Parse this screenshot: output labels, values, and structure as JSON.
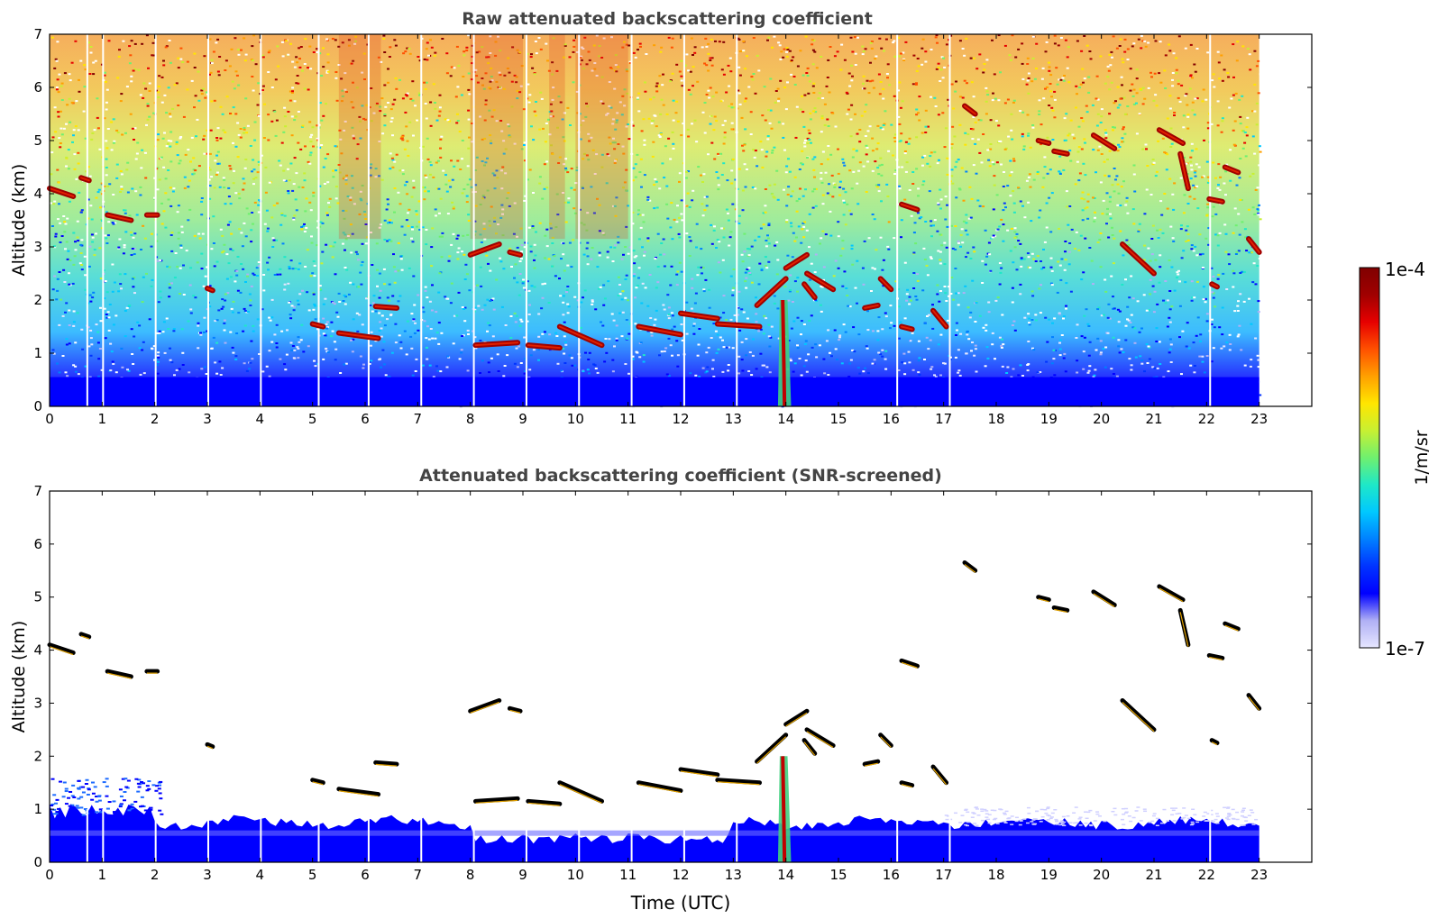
{
  "chart_data": [
    {
      "type": "heatmap",
      "title": "Raw attenuated backscattering coefficient",
      "ylabel": "Altitude (km)",
      "xlabel": "",
      "xlim": [
        0,
        24
      ],
      "ylim": [
        0,
        7
      ],
      "xticks": [
        "0",
        "1",
        "2",
        "3",
        "4",
        "5",
        "6",
        "7",
        "8",
        "9",
        "10",
        "11",
        "12",
        "13",
        "14",
        "15",
        "16",
        "17",
        "18",
        "19",
        "20",
        "21",
        "22",
        "23"
      ],
      "yticks": [
        "0",
        "1",
        "2",
        "3",
        "4",
        "5",
        "6",
        "7"
      ],
      "data_extent_hours": [
        0,
        23
      ],
      "gap_hours": [
        0.7,
        1.0,
        2.0,
        3.0,
        4.0,
        5.1,
        6.05,
        7.05,
        8.05,
        9.05,
        10.05,
        11.05,
        12.05,
        13.05,
        16.1,
        17.1,
        22.05
      ],
      "cloud_segments": [
        {
          "x": [
            0.0,
            0.45
          ],
          "y": [
            4.1,
            3.95
          ]
        },
        {
          "x": [
            0.6,
            0.75
          ],
          "y": [
            4.3,
            4.25
          ]
        },
        {
          "x": [
            1.1,
            1.55
          ],
          "y": [
            3.6,
            3.5
          ]
        },
        {
          "x": [
            1.85,
            2.05
          ],
          "y": [
            3.6,
            3.6
          ]
        },
        {
          "x": [
            3.0,
            3.1
          ],
          "y": [
            2.22,
            2.18
          ]
        },
        {
          "x": [
            5.0,
            5.2
          ],
          "y": [
            1.55,
            1.5
          ]
        },
        {
          "x": [
            5.5,
            6.25
          ],
          "y": [
            1.38,
            1.28
          ]
        },
        {
          "x": [
            6.2,
            6.6
          ],
          "y": [
            1.88,
            1.85
          ]
        },
        {
          "x": [
            8.0,
            8.55
          ],
          "y": [
            2.85,
            3.05
          ]
        },
        {
          "x": [
            8.75,
            8.95
          ],
          "y": [
            2.9,
            2.85
          ]
        },
        {
          "x": [
            8.1,
            8.9
          ],
          "y": [
            1.15,
            1.2
          ]
        },
        {
          "x": [
            9.1,
            9.7
          ],
          "y": [
            1.15,
            1.1
          ]
        },
        {
          "x": [
            9.7,
            10.5
          ],
          "y": [
            1.5,
            1.15
          ]
        },
        {
          "x": [
            11.2,
            12.0
          ],
          "y": [
            1.5,
            1.35
          ]
        },
        {
          "x": [
            12.0,
            12.7
          ],
          "y": [
            1.75,
            1.65
          ]
        },
        {
          "x": [
            12.7,
            13.5
          ],
          "y": [
            1.55,
            1.5
          ]
        },
        {
          "x": [
            13.45,
            14.0
          ],
          "y": [
            1.9,
            2.4
          ]
        },
        {
          "x": [
            14.0,
            14.4
          ],
          "y": [
            2.6,
            2.85
          ]
        },
        {
          "x": [
            14.4,
            14.9
          ],
          "y": [
            2.5,
            2.2
          ]
        },
        {
          "x": [
            14.35,
            14.55
          ],
          "y": [
            2.3,
            2.05
          ]
        },
        {
          "x": [
            15.5,
            15.75
          ],
          "y": [
            1.85,
            1.9
          ]
        },
        {
          "x": [
            15.8,
            16.0
          ],
          "y": [
            2.4,
            2.2
          ]
        },
        {
          "x": [
            16.2,
            16.5
          ],
          "y": [
            3.8,
            3.7
          ]
        },
        {
          "x": [
            16.2,
            16.4
          ],
          "y": [
            1.5,
            1.45
          ]
        },
        {
          "x": [
            16.8,
            17.05
          ],
          "y": [
            1.8,
            1.5
          ]
        },
        {
          "x": [
            17.4,
            17.6
          ],
          "y": [
            5.65,
            5.5
          ]
        },
        {
          "x": [
            18.8,
            19.0
          ],
          "y": [
            5.0,
            4.95
          ]
        },
        {
          "x": [
            19.1,
            19.35
          ],
          "y": [
            4.8,
            4.75
          ]
        },
        {
          "x": [
            19.85,
            20.25
          ],
          "y": [
            5.1,
            4.85
          ]
        },
        {
          "x": [
            20.4,
            21.0
          ],
          "y": [
            3.05,
            2.5
          ]
        },
        {
          "x": [
            21.1,
            21.55
          ],
          "y": [
            5.2,
            4.95
          ]
        },
        {
          "x": [
            21.5,
            21.65
          ],
          "y": [
            4.75,
            4.1
          ]
        },
        {
          "x": [
            22.05,
            22.3
          ],
          "y": [
            3.9,
            3.85
          ]
        },
        {
          "x": [
            22.1,
            22.2
          ],
          "y": [
            2.3,
            2.25
          ]
        },
        {
          "x": [
            22.35,
            22.6
          ],
          "y": [
            4.5,
            4.4
          ]
        },
        {
          "x": [
            22.8,
            23.0
          ],
          "y": [
            3.15,
            2.9
          ]
        }
      ],
      "plume": {
        "x": [
          13.85,
          14.1
        ],
        "y_top": 2.0
      }
    },
    {
      "type": "heatmap",
      "title": "Attenuated backscattering coefficient (SNR-screened)",
      "ylabel": "Altitude (km)",
      "xlabel": "Time (UTC)",
      "xlim": [
        0,
        24
      ],
      "ylim": [
        0,
        7
      ],
      "xticks": [
        "0",
        "1",
        "2",
        "3",
        "4",
        "5",
        "6",
        "7",
        "8",
        "9",
        "10",
        "11",
        "12",
        "13",
        "14",
        "15",
        "16",
        "17",
        "18",
        "19",
        "20",
        "21",
        "22",
        "23"
      ],
      "yticks": [
        "0",
        "1",
        "2",
        "3",
        "4",
        "5",
        "6",
        "7"
      ],
      "data_extent_hours": [
        0,
        23
      ]
    }
  ],
  "colorbar": {
    "label": "1/m/sr",
    "max_label": "1e-4",
    "min_label": "1e-7",
    "scale": "log",
    "range": [
      1e-07,
      0.0001
    ],
    "colormap": [
      "#e6e6ff",
      "#b0b0f5",
      "#0000ff",
      "#0033ff",
      "#0080ff",
      "#00c8ff",
      "#1ee8c8",
      "#6ff06f",
      "#c8f032",
      "#ffe600",
      "#ffa000",
      "#ff5000",
      "#e60000",
      "#a00000",
      "#800000"
    ]
  }
}
